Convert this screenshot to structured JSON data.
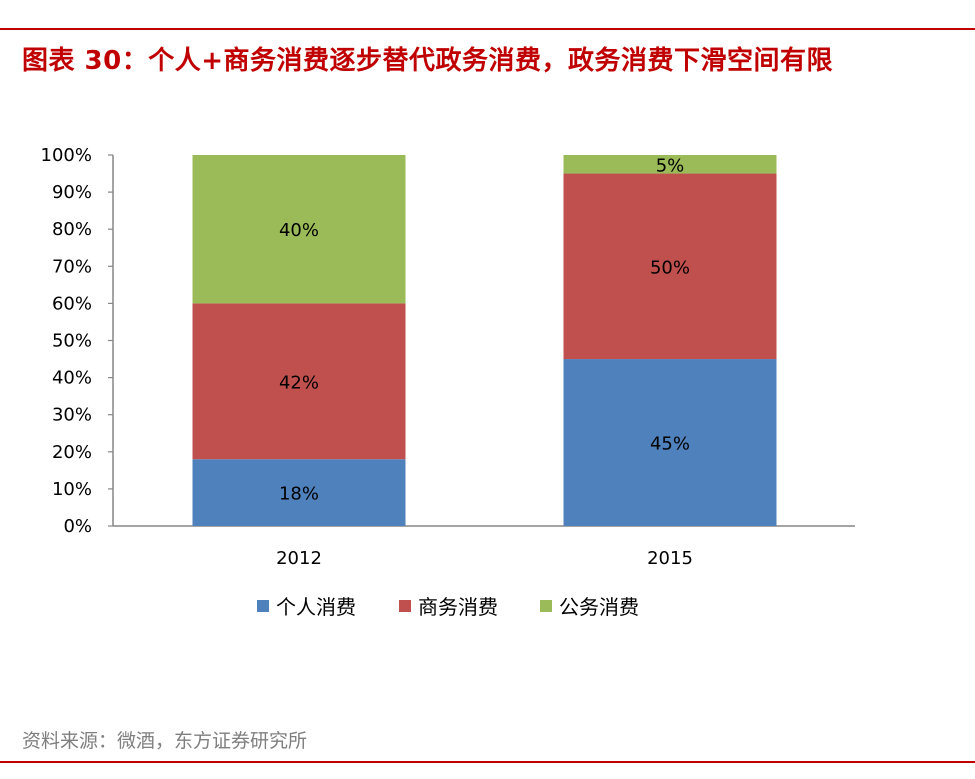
{
  "header": {
    "title": "图表 30：个人+商务消费逐步替代政务消费，政务消费下滑空间有限"
  },
  "footer": {
    "source": "资料来源：微酒，东方证券研究所"
  },
  "colors": {
    "accent": "#c00000",
    "series": [
      "#4f81bd",
      "#c0504d",
      "#9bbb59"
    ]
  },
  "chart_data": {
    "type": "bar",
    "stacked": true,
    "categories": [
      "2012",
      "2015"
    ],
    "series": [
      {
        "name": "个人消费",
        "values": [
          18,
          45
        ],
        "labels": [
          "18%",
          "45%"
        ]
      },
      {
        "name": "商务消费",
        "values": [
          42,
          50
        ],
        "labels": [
          "42%",
          "50%"
        ]
      },
      {
        "name": "公务消费",
        "values": [
          40,
          5
        ],
        "labels": [
          "40%",
          "5%"
        ]
      }
    ],
    "yticks": [
      "0%",
      "10%",
      "20%",
      "30%",
      "40%",
      "50%",
      "60%",
      "70%",
      "80%",
      "90%",
      "100%"
    ],
    "ylim": [
      0,
      100
    ],
    "title": "",
    "xlabel": "",
    "ylabel": "",
    "grid": false,
    "legend": "bottom"
  }
}
